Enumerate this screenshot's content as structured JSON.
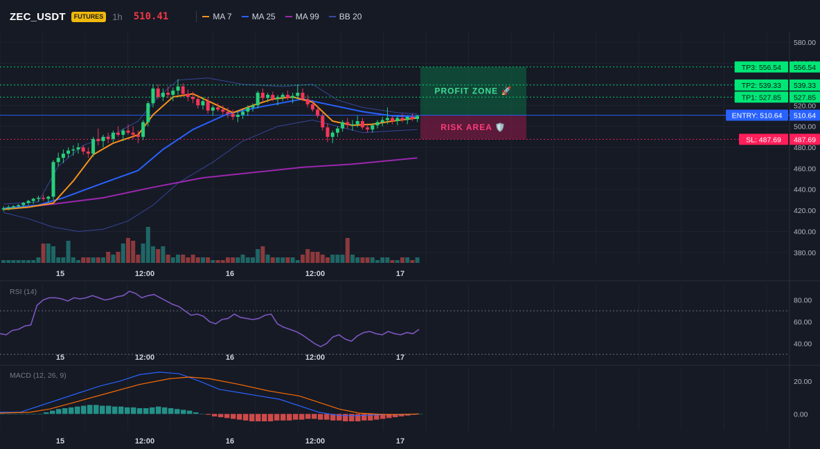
{
  "header": {
    "symbol": "ZEC_USDT",
    "badge": "FUTURES",
    "timeframe": "1h",
    "price": "510.41",
    "legend": [
      {
        "label": "MA 7",
        "color": "#f7931a"
      },
      {
        "label": "MA 25",
        "color": "#2962ff"
      },
      {
        "label": "MA 99",
        "color": "#9c27b0"
      },
      {
        "label": "BB 20",
        "color": "#3949ab"
      }
    ]
  },
  "colors": {
    "up": "#26d07c",
    "down": "#f23658",
    "vol_up": "#26a69a",
    "vol_down": "#ef5350",
    "ma7": "#f7931a",
    "ma25": "#2962ff",
    "ma99": "#9c27b0",
    "bb": "#3f51b5",
    "rsi": "#7e57c2",
    "macd": "#2962ff",
    "signal": "#ff6d00",
    "tp": "#00e676",
    "entry": "#2962ff",
    "sl": "#ff1f5a"
  },
  "chart_data": [
    {
      "type": "candlestick",
      "title": "",
      "x_ticks": [
        "15",
        "12:00",
        "16",
        "12:00",
        "17"
      ],
      "y_ticks": [
        "580.00",
        "560.00",
        "540.00",
        "520.00",
        "500.00",
        "480.00",
        "460.00",
        "440.00",
        "420.00",
        "400.00",
        "380.00"
      ],
      "ylim": [
        370,
        590
      ],
      "candles": [
        [
          421,
          424,
          419,
          422
        ],
        [
          422,
          425,
          420,
          423
        ],
        [
          423,
          425,
          421,
          424
        ],
        [
          424,
          426,
          422,
          425
        ],
        [
          425,
          428,
          423,
          427
        ],
        [
          427,
          430,
          425,
          429
        ],
        [
          429,
          432,
          426,
          431
        ],
        [
          431,
          434,
          428,
          432
        ],
        [
          432,
          435,
          429,
          431
        ],
        [
          431,
          434,
          428,
          433
        ],
        [
          433,
          468,
          430,
          466
        ],
        [
          466,
          475,
          462,
          470
        ],
        [
          470,
          478,
          465,
          474
        ],
        [
          474,
          480,
          470,
          477
        ],
        [
          477,
          482,
          472,
          478
        ],
        [
          478,
          484,
          474,
          480
        ],
        [
          480,
          482,
          473,
          476
        ],
        [
          476,
          480,
          470,
          474
        ],
        [
          474,
          490,
          471,
          488
        ],
        [
          488,
          498,
          482,
          486
        ],
        [
          486,
          492,
          480,
          490
        ],
        [
          490,
          494,
          484,
          488
        ],
        [
          488,
          496,
          485,
          494
        ],
        [
          494,
          500,
          490,
          492
        ],
        [
          492,
          498,
          486,
          496
        ],
        [
          496,
          502,
          492,
          494
        ],
        [
          494,
          500,
          488,
          492
        ],
        [
          492,
          496,
          484,
          490
        ],
        [
          490,
          506,
          487,
          504
        ],
        [
          504,
          524,
          500,
          522
        ],
        [
          522,
          540,
          518,
          536
        ],
        [
          536,
          540,
          526,
          528
        ],
        [
          528,
          536,
          524,
          532
        ],
        [
          532,
          538,
          527,
          530
        ],
        [
          530,
          537,
          524,
          534
        ],
        [
          534,
          545,
          530,
          538
        ],
        [
          538,
          541,
          528,
          531
        ],
        [
          531,
          535,
          524,
          528
        ],
        [
          528,
          533,
          522,
          526
        ],
        [
          526,
          530,
          517,
          520
        ],
        [
          520,
          528,
          516,
          524
        ],
        [
          524,
          528,
          512,
          515
        ],
        [
          515,
          520,
          510,
          518
        ],
        [
          518,
          522,
          514,
          516
        ],
        [
          516,
          520,
          511,
          514
        ],
        [
          514,
          518,
          508,
          512
        ],
        [
          512,
          516,
          506,
          509
        ],
        [
          509,
          514,
          504,
          511
        ],
        [
          511,
          516,
          507,
          514
        ],
        [
          514,
          520,
          510,
          518
        ],
        [
          518,
          522,
          514,
          520
        ],
        [
          520,
          534,
          517,
          532
        ],
        [
          532,
          536,
          524,
          527
        ],
        [
          527,
          532,
          523,
          530
        ],
        [
          530,
          533,
          524,
          526
        ],
        [
          526,
          530,
          520,
          528
        ],
        [
          528,
          532,
          524,
          530
        ],
        [
          530,
          534,
          525,
          527
        ],
        [
          527,
          532,
          522,
          529
        ],
        [
          529,
          540,
          526,
          532
        ],
        [
          532,
          536,
          524,
          526
        ],
        [
          526,
          530,
          518,
          521
        ],
        [
          521,
          525,
          514,
          516
        ],
        [
          516,
          520,
          508,
          510
        ],
        [
          510,
          513,
          496,
          499
        ],
        [
          499,
          503,
          485,
          490
        ],
        [
          490,
          496,
          484,
          494
        ],
        [
          494,
          500,
          490,
          498
        ],
        [
          498,
          506,
          495,
          504
        ],
        [
          504,
          508,
          498,
          501
        ],
        [
          501,
          506,
          496,
          502
        ],
        [
          502,
          510,
          499,
          505
        ],
        [
          505,
          508,
          497,
          499
        ],
        [
          499,
          503,
          494,
          497
        ],
        [
          497,
          503,
          494,
          501
        ],
        [
          501,
          506,
          498,
          504
        ],
        [
          504,
          509,
          500,
          506
        ],
        [
          506,
          518,
          502,
          508
        ],
        [
          508,
          510,
          502,
          505
        ],
        [
          505,
          510,
          501,
          508
        ],
        [
          508,
          512,
          504,
          506
        ],
        [
          506,
          510,
          502,
          509
        ],
        [
          509,
          512,
          505,
          507
        ],
        [
          507,
          511,
          504,
          510
        ]
      ],
      "volume": [
        1,
        1,
        1,
        1,
        1,
        1,
        1,
        2,
        7,
        7,
        6,
        2,
        2,
        8,
        2,
        1,
        2,
        2,
        2,
        2,
        2,
        4,
        3,
        4,
        7,
        9,
        8,
        3,
        7,
        13,
        6,
        5,
        6,
        3,
        2,
        3,
        3,
        2,
        3,
        2,
        2,
        2,
        1,
        1,
        1,
        2,
        2,
        2,
        3,
        2,
        2,
        5,
        6,
        3,
        2,
        2,
        2,
        2,
        2,
        1,
        3,
        5,
        4,
        4,
        3,
        2,
        3,
        3,
        3,
        9,
        3,
        2,
        2,
        2,
        2,
        1,
        2,
        2,
        1,
        1,
        2,
        2,
        1,
        2
      ],
      "ma7": [
        [
          0,
          421
        ],
        [
          5,
          423
        ],
        [
          10,
          427
        ],
        [
          14,
          448
        ],
        [
          18,
          473
        ],
        [
          22,
          484
        ],
        [
          27,
          492
        ],
        [
          30,
          511
        ],
        [
          34,
          528
        ],
        [
          38,
          531
        ],
        [
          42,
          522
        ],
        [
          46,
          513
        ],
        [
          50,
          520
        ],
        [
          54,
          526
        ],
        [
          58,
          528
        ],
        [
          62,
          523
        ],
        [
          66,
          505
        ],
        [
          70,
          501
        ],
        [
          74,
          502
        ],
        [
          78,
          505
        ],
        [
          83,
          508
        ]
      ],
      "ma25": [
        [
          0,
          422
        ],
        [
          7,
          425
        ],
        [
          12,
          432
        ],
        [
          20,
          446
        ],
        [
          27,
          458
        ],
        [
          32,
          478
        ],
        [
          38,
          497
        ],
        [
          45,
          512
        ],
        [
          52,
          519
        ],
        [
          60,
          526
        ],
        [
          66,
          520
        ],
        [
          72,
          514
        ],
        [
          78,
          510
        ],
        [
          83,
          509
        ]
      ],
      "ma99": [
        [
          0,
          421
        ],
        [
          10,
          426
        ],
        [
          20,
          432
        ],
        [
          30,
          442
        ],
        [
          40,
          451
        ],
        [
          50,
          456
        ],
        [
          60,
          461
        ],
        [
          70,
          464
        ],
        [
          83,
          470
        ]
      ],
      "bb_upper": [
        [
          0,
          426
        ],
        [
          7,
          428
        ],
        [
          11,
          462
        ],
        [
          16,
          482
        ],
        [
          22,
          492
        ],
        [
          27,
          505
        ],
        [
          31,
          528
        ],
        [
          35,
          544
        ],
        [
          41,
          546
        ],
        [
          48,
          540
        ],
        [
          56,
          538
        ],
        [
          62,
          540
        ],
        [
          67,
          525
        ],
        [
          72,
          518
        ],
        [
          79,
          513
        ],
        [
          83,
          512
        ]
      ],
      "bb_lower": [
        [
          0,
          418
        ],
        [
          5,
          412
        ],
        [
          10,
          404
        ],
        [
          15,
          400
        ],
        [
          20,
          402
        ],
        [
          25,
          410
        ],
        [
          30,
          425
        ],
        [
          35,
          446
        ],
        [
          42,
          466
        ],
        [
          48,
          486
        ],
        [
          55,
          500
        ],
        [
          62,
          506
        ],
        [
          67,
          500
        ],
        [
          72,
          494
        ],
        [
          79,
          496
        ],
        [
          83,
          497
        ]
      ],
      "levels": [
        {
          "name": "TP3",
          "value": 556.54,
          "label": "TP3: 556.54",
          "axis_label": "556.54",
          "color": "#00e676"
        },
        {
          "name": "TP2",
          "value": 539.33,
          "label": "TP2: 539.33",
          "axis_label": "539.33",
          "color": "#00e676"
        },
        {
          "name": "TP1",
          "value": 527.85,
          "label": "TP1: 527.85",
          "axis_label": "527.85",
          "color": "#00e676"
        },
        {
          "name": "ENTRY",
          "value": 510.64,
          "label": "ENTRY: 510.64",
          "axis_label": "510.64",
          "color": "#2962ff"
        },
        {
          "name": "SL",
          "value": 487.69,
          "label": "SL: 487.69",
          "axis_label": "487.69",
          "color": "#ff1f5a"
        }
      ],
      "zones": {
        "profit_label": "PROFIT ZONE 🚀",
        "risk_label": "RISK AREA 🛡️"
      }
    },
    {
      "type": "line",
      "title": "RSI (14)",
      "y_ticks": [
        "80.00",
        "60.00",
        "40.00"
      ],
      "x_ticks": [
        "15",
        "12:00",
        "16",
        "12:00",
        "17"
      ],
      "ylim": [
        25,
        95
      ],
      "levels": [
        70,
        30
      ],
      "values": [
        49,
        48,
        52,
        53,
        56,
        57,
        75,
        80,
        82,
        82,
        81,
        79,
        82,
        81,
        82,
        84,
        82,
        80,
        81,
        83,
        84,
        88,
        86,
        82,
        84,
        85,
        82,
        79,
        76,
        74,
        70,
        66,
        67,
        65,
        60,
        58,
        62,
        63,
        67,
        64,
        63,
        62,
        63,
        66,
        67,
        58,
        55,
        53,
        51,
        48,
        44,
        40,
        37,
        40,
        46,
        48,
        44,
        42,
        47,
        50,
        51,
        49,
        48,
        51,
        49,
        48,
        50,
        49,
        53
      ]
    },
    {
      "type": "bar",
      "title": "MACD (12, 26, 9)",
      "y_ticks": [
        "20.00",
        "0.00"
      ],
      "x_ticks": [
        "15",
        "12:00",
        "16",
        "12:00",
        "17"
      ],
      "ylim": [
        -10,
        28
      ],
      "histogram": [
        0,
        0,
        0,
        0,
        0,
        0,
        0,
        1,
        2,
        3,
        3.5,
        4,
        4.5,
        5,
        5.5,
        5.5,
        5,
        5,
        4.5,
        4.5,
        4,
        4,
        3.5,
        3.5,
        4,
        4.5,
        4,
        3.5,
        3,
        2.5,
        2,
        1,
        0,
        -0.5,
        -1.5,
        -2,
        -2.5,
        -3,
        -3.5,
        -4,
        -4.5,
        -4.5,
        -4.5,
        -4.5,
        -4,
        -4,
        -4,
        -3.5,
        -3.5,
        -3,
        -3,
        -3.5,
        -3.5,
        -4,
        -4,
        -4.5,
        -4.5,
        -4.5,
        -4,
        -4,
        -3.5,
        -3,
        -2.5,
        -2,
        -1.5,
        -1,
        -0.5,
        0
      ],
      "macd": [
        [
          0,
          1
        ],
        [
          4,
          1
        ],
        [
          8,
          5
        ],
        [
          12,
          9
        ],
        [
          16,
          13
        ],
        [
          20,
          17
        ],
        [
          24,
          20
        ],
        [
          28,
          24
        ],
        [
          32,
          25.5
        ],
        [
          36,
          24.5
        ],
        [
          40,
          20
        ],
        [
          44,
          15
        ],
        [
          48,
          13
        ],
        [
          52,
          11
        ],
        [
          56,
          9
        ],
        [
          60,
          5
        ],
        [
          64,
          1
        ],
        [
          68,
          -1
        ],
        [
          72,
          -1
        ],
        [
          76,
          -0.5
        ],
        [
          80,
          -0.5
        ],
        [
          84,
          0
        ]
      ],
      "signal": [
        [
          0,
          0.5
        ],
        [
          6,
          1
        ],
        [
          10,
          3
        ],
        [
          16,
          8
        ],
        [
          22,
          13
        ],
        [
          28,
          18
        ],
        [
          34,
          21.5
        ],
        [
          38,
          22.5
        ],
        [
          42,
          21.5
        ],
        [
          48,
          18
        ],
        [
          54,
          14
        ],
        [
          60,
          11
        ],
        [
          64,
          7
        ],
        [
          68,
          3
        ],
        [
          72,
          0.5
        ],
        [
          78,
          -0.5
        ],
        [
          84,
          0
        ]
      ]
    }
  ]
}
